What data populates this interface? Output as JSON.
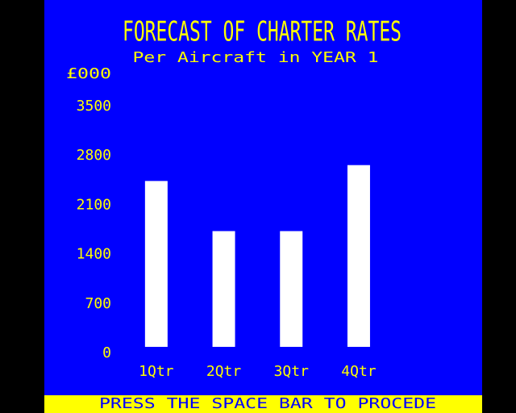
{
  "chart_data": {
    "type": "bar",
    "title": "FORECAST OF CHARTER RATES",
    "subtitle": "Per Aircraft in YEAR 1",
    "y_label": "£000",
    "categories": [
      "1Qtr",
      "2Qtr",
      "3Qtr",
      "4Qtr"
    ],
    "values": [
      2350,
      1640,
      1640,
      2575
    ],
    "color": "#ffffff",
    "ylim": [
      0,
      4000
    ],
    "yticks": [
      0,
      700,
      1400,
      2100,
      2800,
      3500
    ],
    "grid": false
  },
  "prompt": "PRESS THE SPACE BAR TO PROCEDE"
}
